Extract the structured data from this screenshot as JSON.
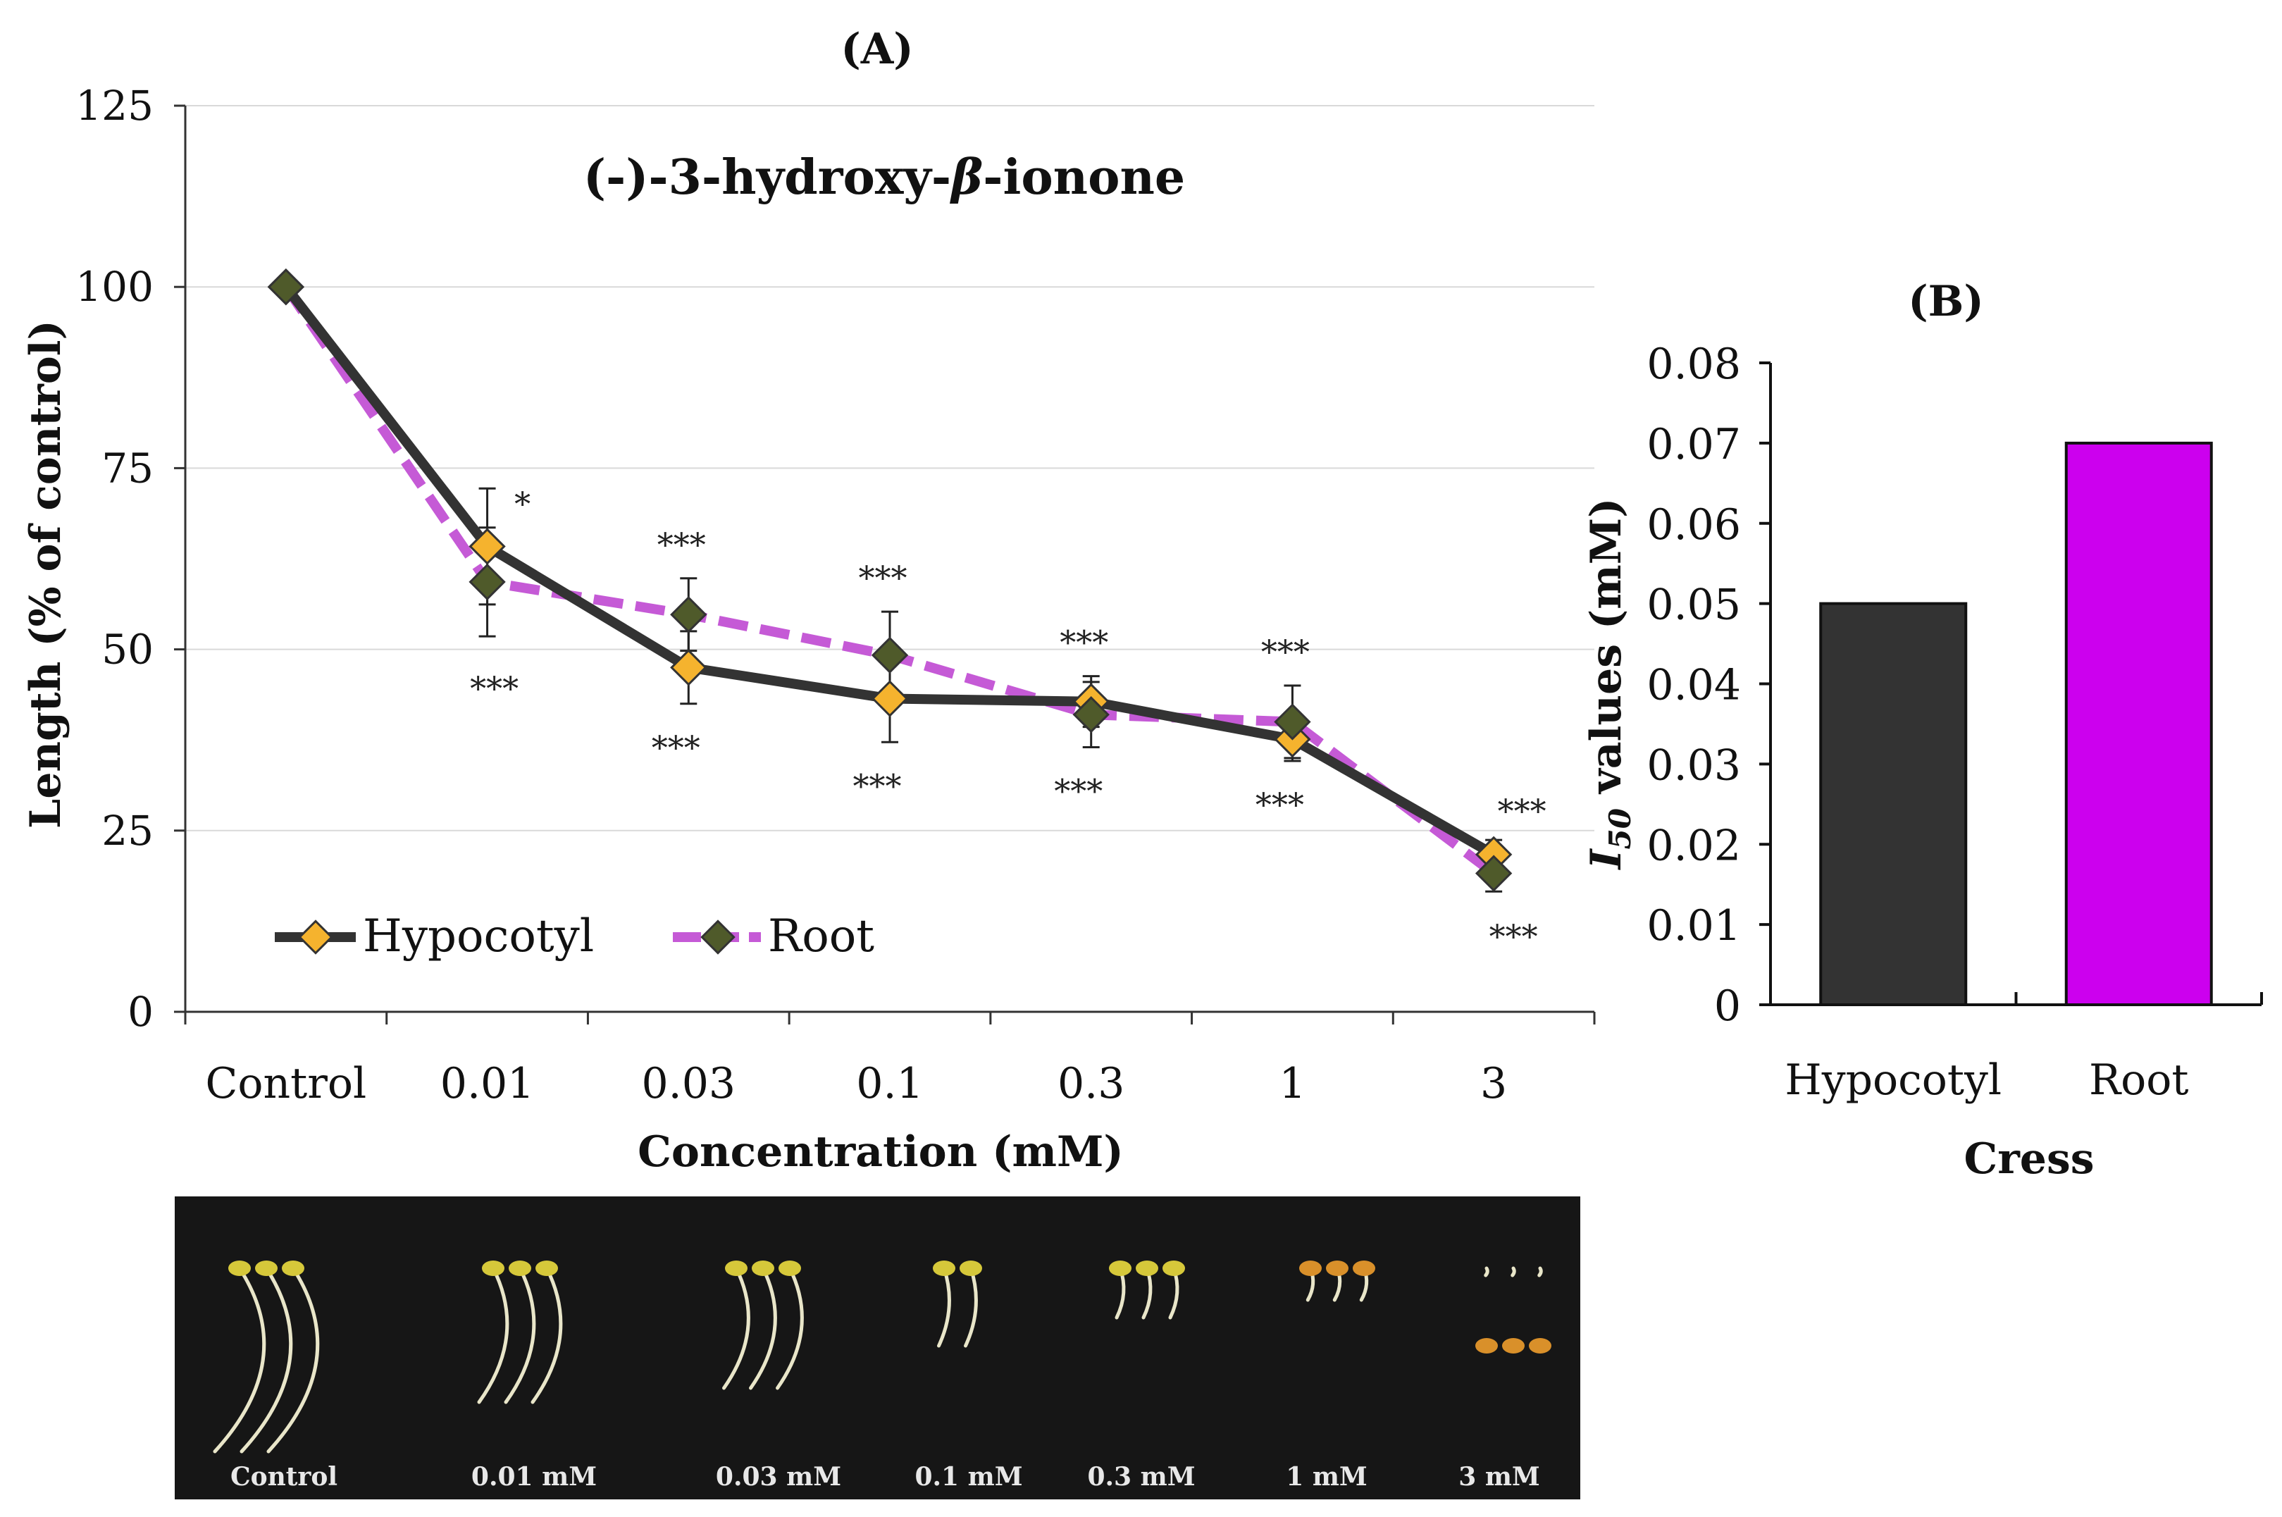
{
  "chart_data": [
    {
      "panel_label": "(A)",
      "type": "line",
      "title": "(-)-3-hydroxy-β-ionone",
      "title_parts": {
        "prefix": "(-)-3-hydroxy-",
        "greek": "β",
        "suffix": "-ionone"
      },
      "xlabel": "Concentration (mM)",
      "ylabel": "Length (% of control)",
      "categories": [
        "Control",
        "0.01",
        "0.03",
        "0.1",
        "0.3",
        "1",
        "3"
      ],
      "ylim": [
        0,
        125
      ],
      "yticks": [
        0,
        25,
        50,
        75,
        100,
        125
      ],
      "grid": true,
      "legend_position": "bottom-left",
      "series": [
        {
          "name": "Hypocotyl",
          "values": [
            100,
            64.2,
            47.5,
            43.2,
            42.8,
            37.6,
            21.7
          ],
          "errors": [
            0,
            8.0,
            5.0,
            6.0,
            3.5,
            3.0,
            2.0
          ],
          "significance": [
            "",
            "*",
            "***",
            "***",
            "***",
            "***",
            "***"
          ],
          "color": "#333333",
          "marker_color": "#f5b32e",
          "line_style": "solid"
        },
        {
          "name": "Root",
          "values": [
            100,
            59.3,
            54.8,
            49.2,
            41.0,
            40.0,
            19.1
          ],
          "errors": [
            0,
            7.5,
            5.0,
            6.0,
            4.5,
            5.0,
            2.5
          ],
          "significance": [
            "",
            "***",
            "***",
            "***",
            "***",
            "***",
            "***"
          ],
          "color": "#c55ad6",
          "marker_color": "#4f5a2a",
          "line_style": "dashed"
        }
      ]
    },
    {
      "panel_label": "(B)",
      "type": "bar",
      "title": "",
      "xlabel": "Cress",
      "ylabel_prefix": "I",
      "ylabel_sub": "50",
      "ylabel_suffix": " values (mM)",
      "categories": [
        "Hypocotyl",
        "Root"
      ],
      "values": [
        0.05,
        0.07
      ],
      "colors": [
        "#333333",
        "#cc00ee"
      ],
      "ylim": [
        0,
        0.08
      ],
      "yticks": [
        "0",
        "0.01",
        "0.02",
        "0.03",
        "0.04",
        "0.05",
        "0.06",
        "0.07",
        "0.08"
      ],
      "grid": false
    }
  ],
  "photo": {
    "labels": [
      "Control",
      "0.01 mM",
      "0.03 mM",
      "0.1 mM",
      "0.3 mM",
      "1 mM",
      "3 mM"
    ]
  }
}
